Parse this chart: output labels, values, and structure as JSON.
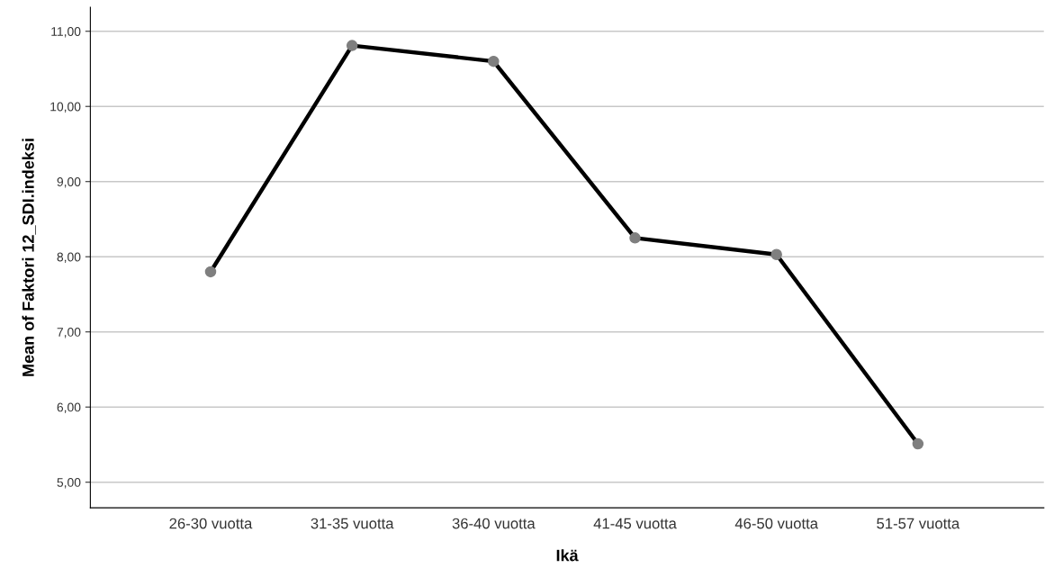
{
  "chart_data": {
    "type": "line",
    "xlabel": "Ikä",
    "ylabel": "Mean of Faktori 12_SDI.indeksi",
    "categories": [
      "26-30 vuotta",
      "31-35 vuotta",
      "36-40 vuotta",
      "41-45 vuotta",
      "46-50 vuotta",
      "51-57 vuotta"
    ],
    "series": [
      {
        "color": "#000000",
        "values": [
          7.8,
          10.81,
          10.6,
          8.25,
          8.03,
          5.51
        ]
      }
    ],
    "ylim": [
      4.66,
      11.32
    ],
    "yticks": [
      {
        "value": 5,
        "label": "5,00"
      },
      {
        "value": 6,
        "label": "6,00"
      },
      {
        "value": 7,
        "label": "7,00"
      },
      {
        "value": 8,
        "label": "8,00"
      },
      {
        "value": 9,
        "label": "9,00"
      },
      {
        "value": 10,
        "label": "10,00"
      },
      {
        "value": 11,
        "label": "11,00"
      }
    ],
    "grid": "y",
    "marker": "circle",
    "line_style": "solid",
    "legend": false
  }
}
